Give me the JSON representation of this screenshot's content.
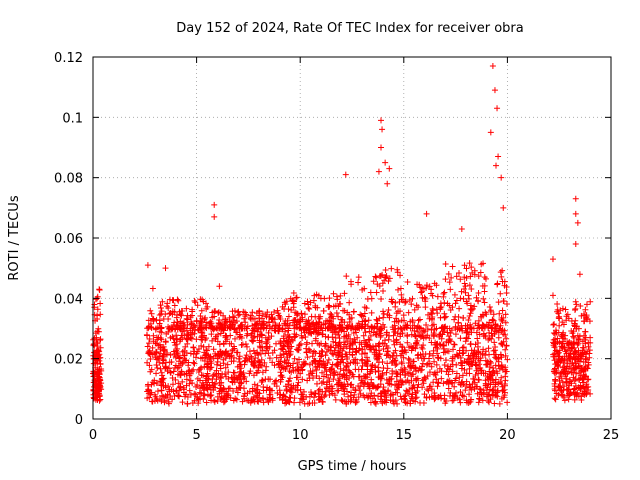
{
  "chart_data": {
    "type": "scatter",
    "title": "Day 152 of 2024, Rate Of TEC Index for receiver obra",
    "xlabel": "GPS time / hours",
    "ylabel": "ROTI / TECUs",
    "xlim": [
      0,
      25
    ],
    "ylim": [
      0,
      0.12
    ],
    "x_ticks": [
      "0",
      "5",
      "10",
      "15",
      "20",
      "25"
    ],
    "y_ticks": [
      "0",
      "0.02",
      "0.04",
      "0.06",
      "0.08",
      "0.1",
      "0.12"
    ],
    "grid": true,
    "marker": "+",
    "color": "#ff0000",
    "segments": [
      {
        "x_range": [
          0.0,
          0.4
        ],
        "baseline": [
          0.006,
          0.022
        ]
      },
      {
        "x_range": [
          2.6,
          20.0
        ],
        "baseline": [
          0.005,
          0.03
        ]
      },
      {
        "x_range": [
          22.2,
          24.0
        ],
        "baseline": [
          0.006,
          0.025
        ]
      }
    ],
    "notable_points": [
      {
        "x": 0.3,
        "y": 0.043
      },
      {
        "x": 0.2,
        "y": 0.04
      },
      {
        "x": 2.65,
        "y": 0.051
      },
      {
        "x": 3.5,
        "y": 0.05
      },
      {
        "x": 5.85,
        "y": 0.071
      },
      {
        "x": 5.85,
        "y": 0.067
      },
      {
        "x": 6.1,
        "y": 0.044
      },
      {
        "x": 12.2,
        "y": 0.081
      },
      {
        "x": 13.9,
        "y": 0.099
      },
      {
        "x": 13.95,
        "y": 0.096
      },
      {
        "x": 13.9,
        "y": 0.09
      },
      {
        "x": 14.1,
        "y": 0.085
      },
      {
        "x": 14.3,
        "y": 0.083
      },
      {
        "x": 13.8,
        "y": 0.082
      },
      {
        "x": 14.2,
        "y": 0.078
      },
      {
        "x": 16.1,
        "y": 0.068
      },
      {
        "x": 17.8,
        "y": 0.063
      },
      {
        "x": 19.3,
        "y": 0.117
      },
      {
        "x": 19.4,
        "y": 0.109
      },
      {
        "x": 19.5,
        "y": 0.103
      },
      {
        "x": 19.2,
        "y": 0.095
      },
      {
        "x": 19.55,
        "y": 0.087
      },
      {
        "x": 19.45,
        "y": 0.084
      },
      {
        "x": 19.7,
        "y": 0.08
      },
      {
        "x": 19.8,
        "y": 0.07
      },
      {
        "x": 22.2,
        "y": 0.053
      },
      {
        "x": 22.2,
        "y": 0.041
      },
      {
        "x": 23.3,
        "y": 0.073
      },
      {
        "x": 23.3,
        "y": 0.068
      },
      {
        "x": 23.4,
        "y": 0.065
      },
      {
        "x": 23.3,
        "y": 0.058
      },
      {
        "x": 23.5,
        "y": 0.048
      }
    ]
  }
}
